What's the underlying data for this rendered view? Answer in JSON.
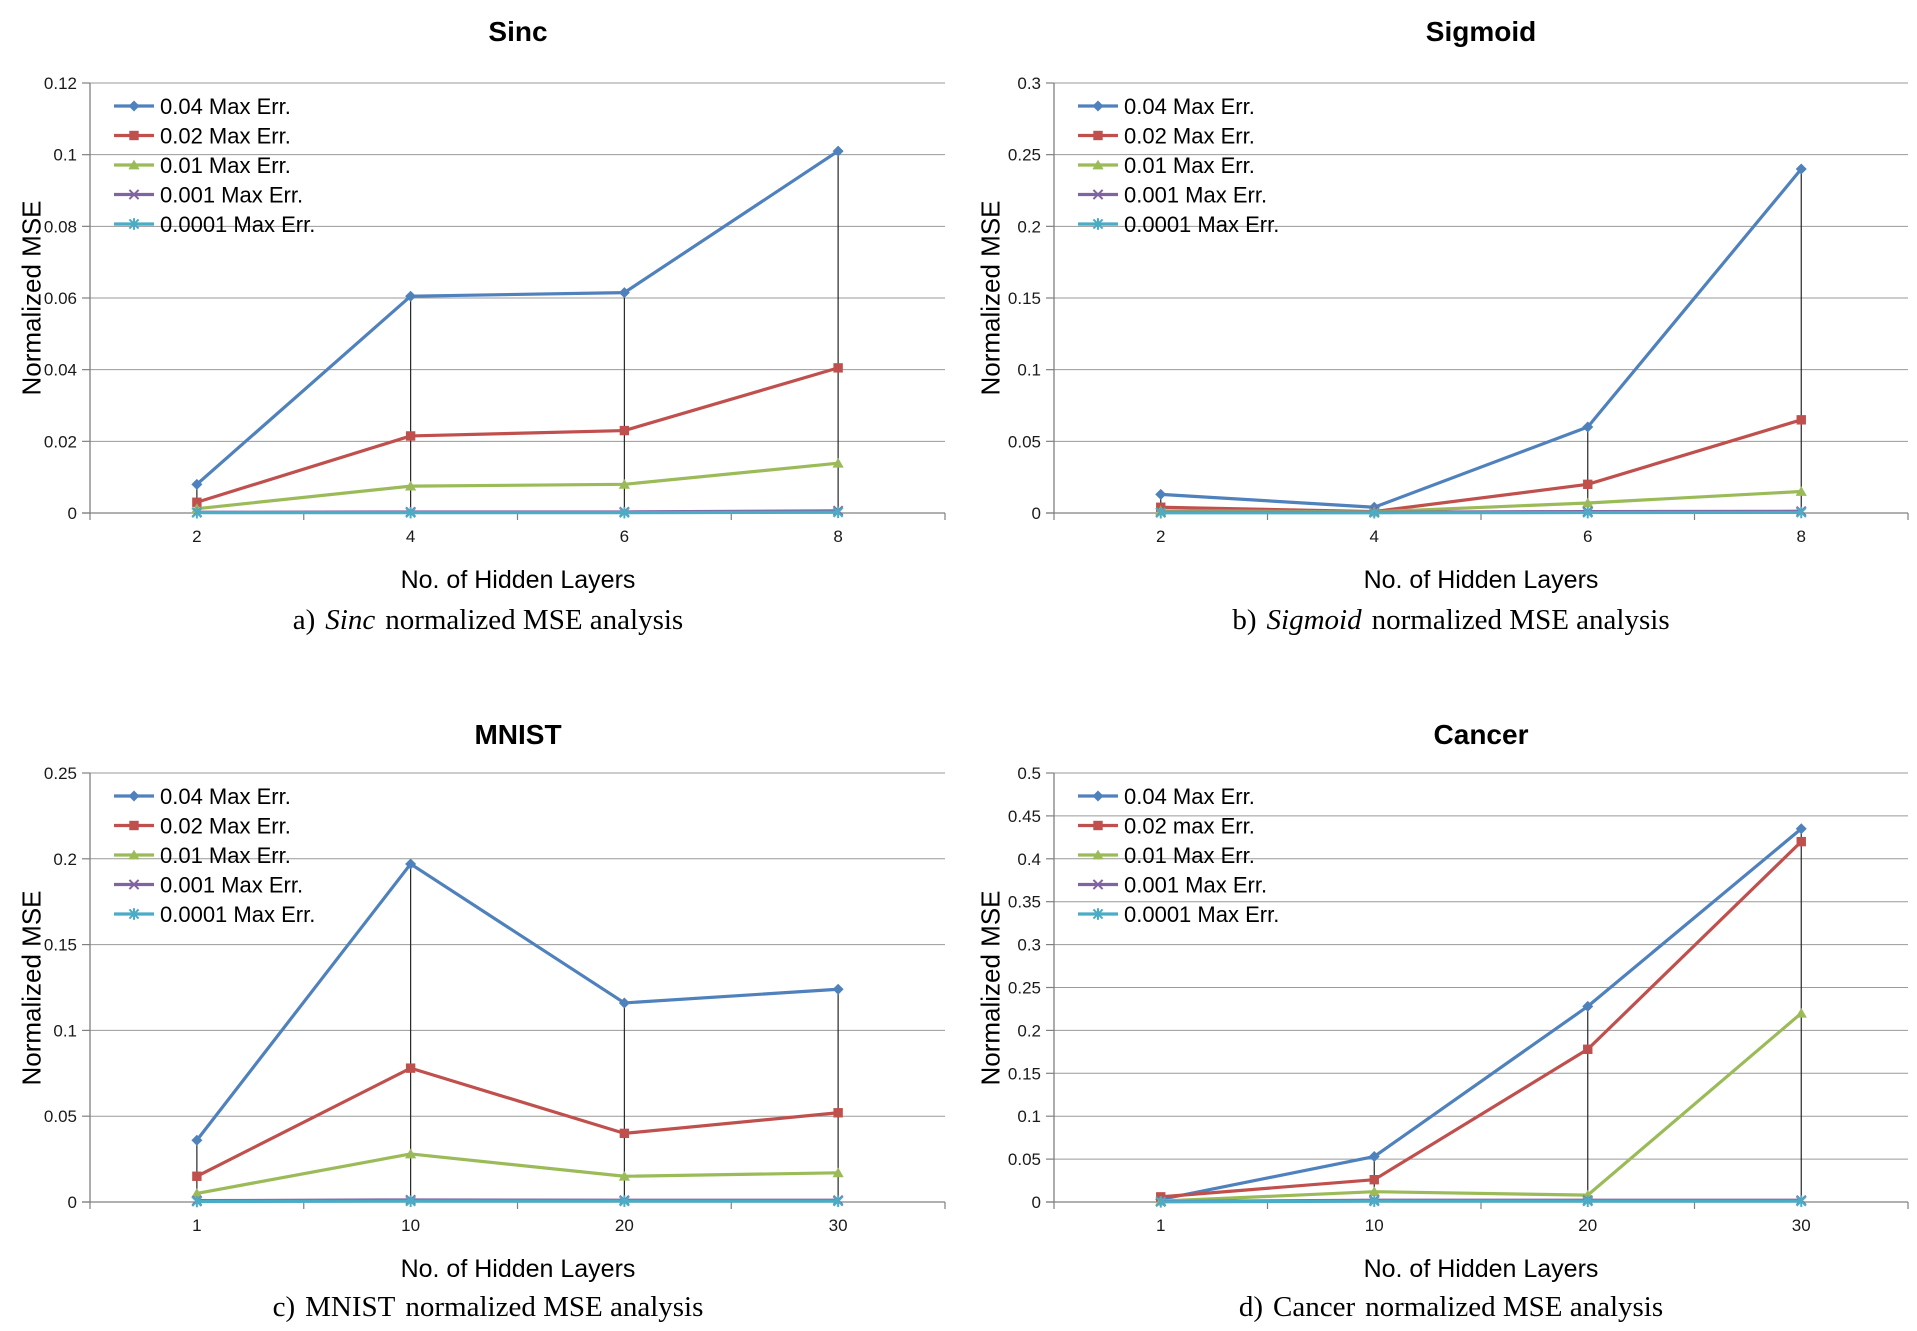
{
  "page": {
    "background": "#ffffff"
  },
  "shared": {
    "xlabel": "No. of Hidden Layers",
    "ylabel": "Normalized MSE",
    "grid_color": "#9a9a9a",
    "axis_color": "#808080",
    "drop_line_color": "#262626"
  },
  "chart_data": [
    {
      "type": "line",
      "title": "Sinc",
      "xlabel": "No. of Hidden Layers",
      "ylabel": "Normalized MSE",
      "caption": {
        "prefix": "a)",
        "name": "Sinc",
        "italic": true,
        "rest": "normalized MSE analysis"
      },
      "categories": [
        "2",
        "4",
        "6",
        "8"
      ],
      "ylim": [
        0,
        0.12
      ],
      "ytick_labels": [
        "0",
        "0.02",
        "0.04",
        "0.06",
        "0.08",
        "0.1",
        "0.12"
      ],
      "legend_position": "top-left",
      "grid": true,
      "drop_lines": true,
      "series": [
        {
          "name": "0.04 Max Err.",
          "color": "#4F81BD",
          "marker": "diamond",
          "values": [
            0.008,
            0.0605,
            0.0615,
            0.101
          ]
        },
        {
          "name": "0.02 Max Err.",
          "color": "#C0504D",
          "marker": "square",
          "values": [
            0.003,
            0.0215,
            0.023,
            0.0405
          ]
        },
        {
          "name": "0.01 Max Err.",
          "color": "#9BBB59",
          "marker": "triangle",
          "values": [
            0.0012,
            0.0075,
            0.008,
            0.0139
          ]
        },
        {
          "name": "0.001 Max Err.",
          "color": "#8064A2",
          "marker": "x",
          "values": [
            0.0002,
            0.0003,
            0.0003,
            0.0006
          ]
        },
        {
          "name": "0.0001 Max Err.",
          "color": "#4BACC6",
          "marker": "star",
          "values": [
            0.0001,
            0.0001,
            0.0001,
            0.0002
          ]
        }
      ]
    },
    {
      "type": "line",
      "title": "Sigmoid",
      "xlabel": "No. of Hidden Layers",
      "ylabel": "Normalized MSE",
      "caption": {
        "prefix": "b)",
        "name": "Sigmoid",
        "italic": true,
        "rest": "normalized MSE analysis"
      },
      "categories": [
        "2",
        "4",
        "6",
        "8"
      ],
      "ylim": [
        0,
        0.3
      ],
      "ytick_labels": [
        "0",
        "0.05",
        "0.1",
        "0.15",
        "0.2",
        "0.25",
        "0.3"
      ],
      "legend_position": "top-left",
      "grid": true,
      "drop_lines": true,
      "series": [
        {
          "name": "0.04 Max Err.",
          "color": "#4F81BD",
          "marker": "diamond",
          "values": [
            0.013,
            0.004,
            0.06,
            0.24
          ]
        },
        {
          "name": "0.02 Max Err.",
          "color": "#C0504D",
          "marker": "square",
          "values": [
            0.004,
            0.001,
            0.02,
            0.065
          ]
        },
        {
          "name": "0.01 Max Err.",
          "color": "#9BBB59",
          "marker": "triangle",
          "values": [
            0.0015,
            0.0008,
            0.007,
            0.015
          ]
        },
        {
          "name": "0.001 Max Err.",
          "color": "#8064A2",
          "marker": "x",
          "values": [
            0.0005,
            0.0005,
            0.001,
            0.0012
          ]
        },
        {
          "name": "0.0001 Max Err.",
          "color": "#4BACC6",
          "marker": "star",
          "values": [
            0.0002,
            0.0002,
            0.0003,
            0.0004
          ]
        }
      ]
    },
    {
      "type": "line",
      "title": "MNIST",
      "xlabel": "No. of Hidden Layers",
      "ylabel": "Normalized MSE",
      "caption": {
        "prefix": "c)",
        "name": "MNIST",
        "italic": false,
        "rest": "normalized MSE analysis"
      },
      "categories": [
        "1",
        "10",
        "20",
        "30"
      ],
      "ylim": [
        0,
        0.25
      ],
      "ytick_labels": [
        "0",
        "0.05",
        "0.1",
        "0.15",
        "0.2",
        "0.25"
      ],
      "legend_position": "top-left",
      "grid": true,
      "drop_lines": true,
      "series": [
        {
          "name": "0.04 Max Err.",
          "color": "#4F81BD",
          "marker": "diamond",
          "values": [
            0.036,
            0.197,
            0.116,
            0.124
          ]
        },
        {
          "name": "0.02 Max Err.",
          "color": "#C0504D",
          "marker": "square",
          "values": [
            0.015,
            0.078,
            0.04,
            0.052
          ]
        },
        {
          "name": "0.01 Max Err.",
          "color": "#9BBB59",
          "marker": "triangle",
          "values": [
            0.005,
            0.028,
            0.015,
            0.017
          ]
        },
        {
          "name": "0.001 Max Err.",
          "color": "#8064A2",
          "marker": "x",
          "values": [
            0.0008,
            0.0012,
            0.001,
            0.001
          ]
        },
        {
          "name": "0.0001 Max Err.",
          "color": "#4BACC6",
          "marker": "star",
          "values": [
            0.0003,
            0.0005,
            0.0005,
            0.0005
          ]
        }
      ]
    },
    {
      "type": "line",
      "title": "Cancer",
      "xlabel": "No. of Hidden Layers",
      "ylabel": "Normalized MSE",
      "caption": {
        "prefix": "d)",
        "name": "Cancer",
        "italic": false,
        "rest": "normalized MSE analysis"
      },
      "categories": [
        "1",
        "10",
        "20",
        "30"
      ],
      "ylim": [
        0,
        0.5
      ],
      "ytick_labels": [
        "0",
        "0.05",
        "0.1",
        "0.15",
        "0.2",
        "0.25",
        "0.3",
        "0.35",
        "0.4",
        "0.45",
        "0.5"
      ],
      "legend_position": "top-left",
      "grid": true,
      "drop_lines": true,
      "series": [
        {
          "name": "0.04 Max Err.",
          "color": "#4F81BD",
          "marker": "diamond",
          "values": [
            0.003,
            0.053,
            0.228,
            0.435
          ]
        },
        {
          "name": "0.02 max Err.",
          "color": "#C0504D",
          "marker": "square",
          "values": [
            0.006,
            0.026,
            0.178,
            0.42
          ]
        },
        {
          "name": "0.01 Max Err.",
          "color": "#9BBB59",
          "marker": "triangle",
          "values": [
            0.001,
            0.012,
            0.008,
            0.22
          ]
        },
        {
          "name": "0.001 Max Err.",
          "color": "#8064A2",
          "marker": "x",
          "values": [
            0.0005,
            0.002,
            0.002,
            0.002
          ]
        },
        {
          "name": "0.0001 Max Err.",
          "color": "#4BACC6",
          "marker": "star",
          "values": [
            0.0002,
            0.001,
            0.001,
            0.001
          ]
        }
      ]
    }
  ]
}
